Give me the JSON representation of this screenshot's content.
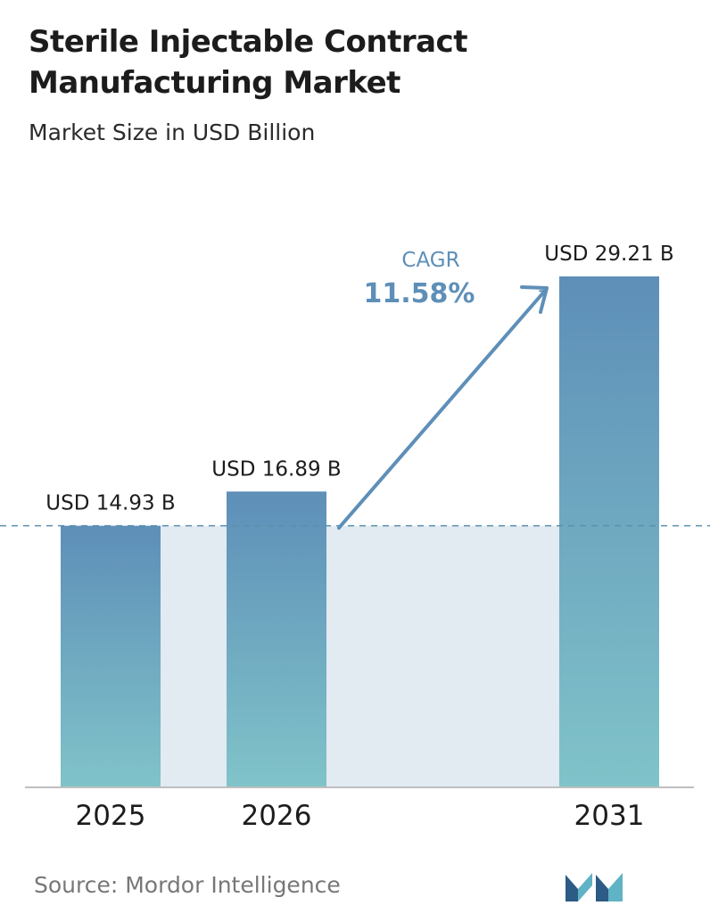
{
  "header": {
    "title": "Sterile Injectable Contract Manufacturing Market",
    "subtitle": "Market Size in USD Billion"
  },
  "chart_data": {
    "type": "bar",
    "categories": [
      "2025",
      "2026",
      "2031"
    ],
    "values": [
      14.93,
      16.89,
      29.21
    ],
    "value_labels": [
      "USD 14.93 B",
      "USD 16.89 B",
      "USD 29.21 B"
    ],
    "title": "Sterile Injectable Contract Manufacturing Market",
    "subtitle": "Market Size in USD Billion",
    "xlabel": "",
    "ylabel": "",
    "ylim": [
      0,
      30
    ],
    "grid": false,
    "annotation": {
      "label": "CAGR",
      "value": "11.58%"
    }
  },
  "footer": {
    "source": "Source:  Mordor Intelligence"
  },
  "colors": {
    "bar_top": "#5e8fb8",
    "bar_bottom": "#80c3c9",
    "band": "#e2eaf2",
    "arrow": "#5e8fb8",
    "baseline_dash": "#5a8fae",
    "axis": "#bfbfbf",
    "logo_dark": "#2c5b86",
    "logo_light": "#5fb3c4"
  }
}
